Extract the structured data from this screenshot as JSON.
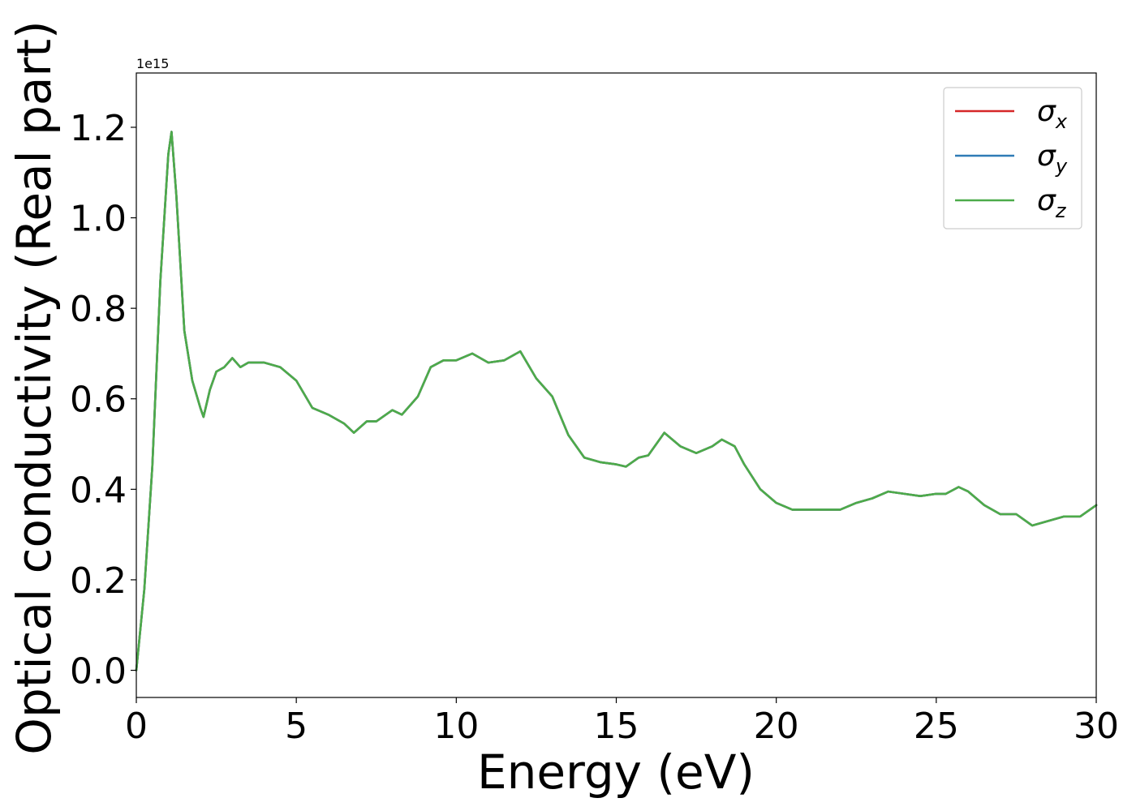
{
  "chart_data": {
    "type": "line",
    "title": "",
    "xlabel": "Energy (eV)",
    "ylabel": "Optical conductivity (Real part)",
    "offset_label": "1e15",
    "xlim": [
      0,
      30
    ],
    "ylim": [
      -0.06,
      1.32
    ],
    "xticks": [
      0,
      5,
      10,
      15,
      20,
      25,
      30
    ],
    "xtick_labels": [
      "0",
      "5",
      "10",
      "15",
      "20",
      "25",
      "30"
    ],
    "yticks": [
      0.0,
      0.2,
      0.4,
      0.6,
      0.8,
      1.0,
      1.2
    ],
    "ytick_labels": [
      "0.0",
      "0.2",
      "0.4",
      "0.6",
      "0.8",
      "1.0",
      "1.2"
    ],
    "grid": false,
    "legend_position": "top-right",
    "x": [
      0,
      0.25,
      0.5,
      0.75,
      1.0,
      1.1,
      1.25,
      1.5,
      1.75,
      2.0,
      2.1,
      2.3,
      2.5,
      2.75,
      3.0,
      3.25,
      3.5,
      4.0,
      4.5,
      5.0,
      5.5,
      6.0,
      6.5,
      6.8,
      7.2,
      7.5,
      8.0,
      8.3,
      8.8,
      9.2,
      9.6,
      10.0,
      10.5,
      11.0,
      11.5,
      12.0,
      12.5,
      13.0,
      13.5,
      14.0,
      14.5,
      15.0,
      15.3,
      15.7,
      16.0,
      16.5,
      17.0,
      17.5,
      18.0,
      18.3,
      18.7,
      19.0,
      19.5,
      20.0,
      20.5,
      21.0,
      21.5,
      22.0,
      22.5,
      23.0,
      23.5,
      24.0,
      24.5,
      25.0,
      25.3,
      25.7,
      26.0,
      26.5,
      27.0,
      27.5,
      28.0,
      28.5,
      29.0,
      29.5,
      30.0
    ],
    "series": [
      {
        "name": "σ_x",
        "color": "#d62728",
        "values": [
          0.0,
          0.18,
          0.45,
          0.86,
          1.14,
          1.19,
          1.05,
          0.75,
          0.64,
          0.58,
          0.56,
          0.62,
          0.66,
          0.67,
          0.69,
          0.67,
          0.68,
          0.68,
          0.67,
          0.64,
          0.58,
          0.565,
          0.545,
          0.525,
          0.55,
          0.55,
          0.575,
          0.565,
          0.605,
          0.67,
          0.685,
          0.685,
          0.7,
          0.68,
          0.685,
          0.705,
          0.645,
          0.605,
          0.52,
          0.47,
          0.46,
          0.455,
          0.45,
          0.47,
          0.475,
          0.525,
          0.495,
          0.48,
          0.495,
          0.51,
          0.495,
          0.455,
          0.4,
          0.37,
          0.355,
          0.355,
          0.355,
          0.355,
          0.37,
          0.38,
          0.395,
          0.39,
          0.385,
          0.39,
          0.39,
          0.405,
          0.395,
          0.365,
          0.345,
          0.345,
          0.32,
          0.33,
          0.34,
          0.34,
          0.365
        ]
      },
      {
        "name": "σ_y",
        "color": "#2f7bb6",
        "values": [
          0.0,
          0.18,
          0.45,
          0.86,
          1.14,
          1.19,
          1.05,
          0.75,
          0.64,
          0.58,
          0.56,
          0.62,
          0.66,
          0.67,
          0.69,
          0.67,
          0.68,
          0.68,
          0.67,
          0.64,
          0.58,
          0.565,
          0.545,
          0.525,
          0.55,
          0.55,
          0.575,
          0.565,
          0.605,
          0.67,
          0.685,
          0.685,
          0.7,
          0.68,
          0.685,
          0.705,
          0.645,
          0.605,
          0.52,
          0.47,
          0.46,
          0.455,
          0.45,
          0.47,
          0.475,
          0.525,
          0.495,
          0.48,
          0.495,
          0.51,
          0.495,
          0.455,
          0.4,
          0.37,
          0.355,
          0.355,
          0.355,
          0.355,
          0.37,
          0.38,
          0.395,
          0.39,
          0.385,
          0.39,
          0.39,
          0.405,
          0.395,
          0.365,
          0.345,
          0.345,
          0.32,
          0.33,
          0.34,
          0.34,
          0.365
        ]
      },
      {
        "name": "σ_z",
        "color": "#4dab4a",
        "values": [
          0.0,
          0.18,
          0.45,
          0.86,
          1.14,
          1.19,
          1.05,
          0.75,
          0.64,
          0.58,
          0.56,
          0.62,
          0.66,
          0.67,
          0.69,
          0.67,
          0.68,
          0.68,
          0.67,
          0.64,
          0.58,
          0.565,
          0.545,
          0.525,
          0.55,
          0.55,
          0.575,
          0.565,
          0.605,
          0.67,
          0.685,
          0.685,
          0.7,
          0.68,
          0.685,
          0.705,
          0.645,
          0.605,
          0.52,
          0.47,
          0.46,
          0.455,
          0.45,
          0.47,
          0.475,
          0.525,
          0.495,
          0.48,
          0.495,
          0.51,
          0.495,
          0.455,
          0.4,
          0.37,
          0.355,
          0.355,
          0.355,
          0.355,
          0.37,
          0.38,
          0.395,
          0.39,
          0.385,
          0.39,
          0.39,
          0.405,
          0.395,
          0.365,
          0.345,
          0.345,
          0.32,
          0.33,
          0.34,
          0.34,
          0.365
        ]
      }
    ],
    "legend": [
      {
        "symbol": "σ",
        "sub": "x",
        "color": "#d62728"
      },
      {
        "symbol": "σ",
        "sub": "y",
        "color": "#2f7bb6"
      },
      {
        "symbol": "σ",
        "sub": "z",
        "color": "#4dab4a"
      }
    ]
  }
}
